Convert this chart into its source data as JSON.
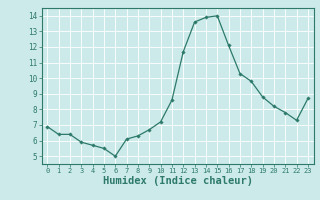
{
  "x": [
    0,
    1,
    2,
    3,
    4,
    5,
    6,
    7,
    8,
    9,
    10,
    11,
    12,
    13,
    14,
    15,
    16,
    17,
    18,
    19,
    20,
    21,
    22,
    23
  ],
  "y": [
    6.9,
    6.4,
    6.4,
    5.9,
    5.7,
    5.5,
    5.0,
    6.1,
    6.3,
    6.7,
    7.2,
    8.6,
    11.7,
    13.6,
    13.9,
    14.0,
    12.1,
    10.3,
    9.8,
    8.8,
    8.2,
    7.8,
    7.3,
    8.7
  ],
  "line_color": "#2d7a6a",
  "marker": "D",
  "markersize": 1.8,
  "linewidth": 0.9,
  "xlabel": "Humidex (Indice chaleur)",
  "xlabel_fontsize": 7.5,
  "xlim": [
    -0.5,
    23.5
  ],
  "ylim": [
    4.5,
    14.5
  ],
  "yticks": [
    5,
    6,
    7,
    8,
    9,
    10,
    11,
    12,
    13,
    14
  ],
  "xticks": [
    0,
    1,
    2,
    3,
    4,
    5,
    6,
    7,
    8,
    9,
    10,
    11,
    12,
    13,
    14,
    15,
    16,
    17,
    18,
    19,
    20,
    21,
    22,
    23
  ],
  "bg_color": "#cceaea",
  "grid_color": "#ffffff",
  "tick_color": "#2d7a6a",
  "spine_color": "#2d7a6a"
}
